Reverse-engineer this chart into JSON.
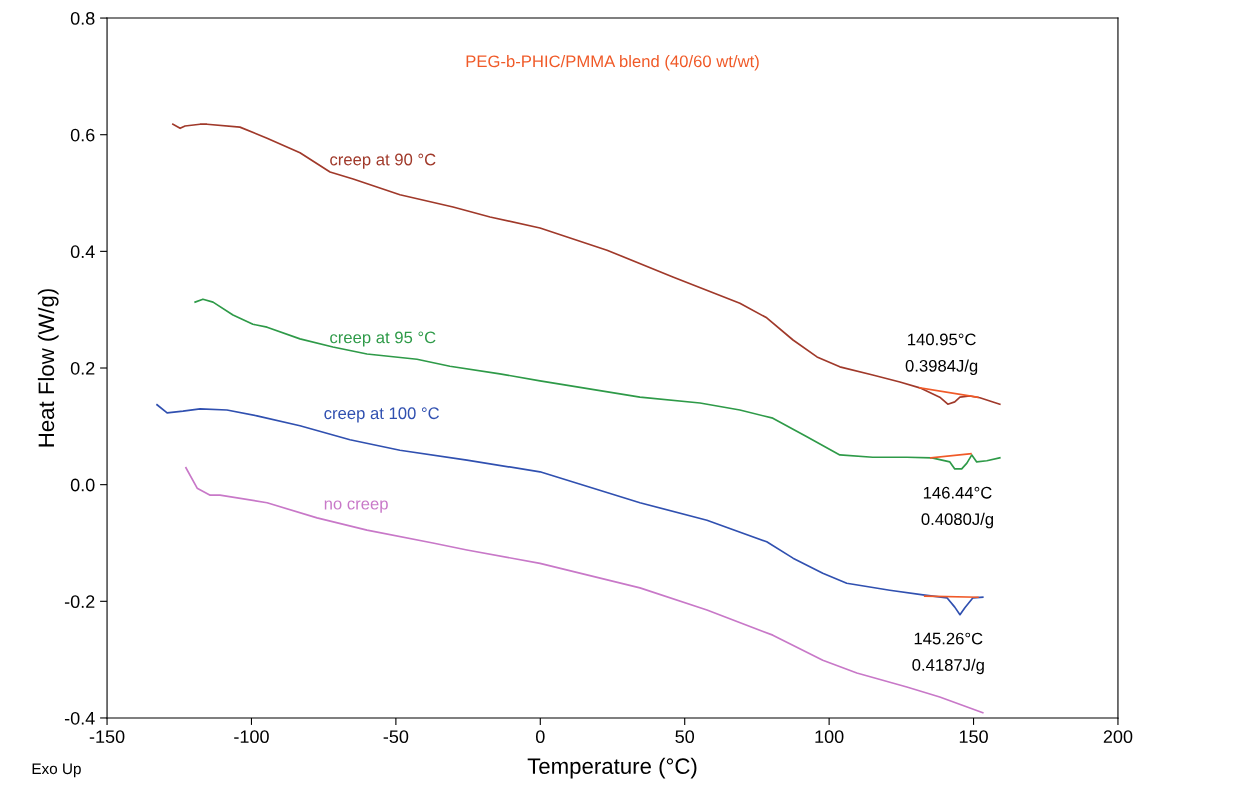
{
  "chart_data": {
    "type": "line",
    "title": "PEG-b-PHIC/PMMA blend (40/60 wt/wt)",
    "xlabel": "Temperature (°C)",
    "ylabel": "Heat Flow (W/g)",
    "xlim": [
      -150,
      200
    ],
    "xticks": [
      -150,
      -100,
      -50,
      0,
      50,
      100,
      150,
      200
    ],
    "ylim": [
      -0.4,
      0.8
    ],
    "yticks": [
      {
        "value": -0.4,
        "label": "-0.4"
      },
      {
        "value": -0.2,
        "label": "-0.2"
      },
      {
        "value": 0.0,
        "label": "0.0"
      },
      0.2,
      0.4,
      0.6,
      0.8
    ],
    "grid": false,
    "legend": false,
    "line_style": "solid",
    "marker": "none",
    "series": [
      {
        "name": "creep at 90 °C",
        "color": "#a0392a",
        "x": [
          -127.2,
          -124.7,
          -123,
          -117.8,
          -115.4,
          -104,
          -94.6,
          -83.2,
          -72.8,
          -64.8,
          -48.6,
          -30.2,
          -17.4,
          -0.1,
          23.1,
          45.9,
          69.1,
          78.4,
          87.5,
          95.8,
          103.7,
          115.1,
          124.5,
          131.4,
          138.3,
          141.1,
          143.5,
          145.3,
          148.7,
          152.2,
          159.1
        ],
        "values": [
          0.618,
          0.611,
          0.615,
          0.618,
          0.618,
          0.613,
          0.594,
          0.569,
          0.536,
          0.524,
          0.497,
          0.476,
          0.459,
          0.44,
          0.402,
          0.356,
          0.311,
          0.286,
          0.248,
          0.219,
          0.202,
          0.188,
          0.176,
          0.166,
          0.15,
          0.138,
          0.142,
          0.15,
          0.152,
          0.149,
          0.138
        ]
      },
      {
        "name": "creep at 95 °C",
        "color": "#2e9a48",
        "x": [
          -119.5,
          -116.8,
          -113.3,
          -106.4,
          -99.5,
          -94.6,
          -83.2,
          -71.8,
          -60.0,
          -42.7,
          -31.3,
          -14.0,
          -0.1,
          34.5,
          55.3,
          69.1,
          80.5,
          92.3,
          103.7,
          115.1,
          126.9,
          135.6,
          141.8,
          143.5,
          145.9,
          147.7,
          149.4,
          151.1,
          154.6,
          159.1
        ],
        "values": [
          0.313,
          0.318,
          0.313,
          0.291,
          0.275,
          0.27,
          0.25,
          0.236,
          0.224,
          0.215,
          0.203,
          0.19,
          0.178,
          0.15,
          0.14,
          0.128,
          0.114,
          0.082,
          0.051,
          0.047,
          0.047,
          0.046,
          0.039,
          0.027,
          0.027,
          0.037,
          0.051,
          0.039,
          0.041,
          0.046
        ]
      },
      {
        "name": "creep at 100 °C",
        "color": "#3050b0",
        "x": [
          -132.7,
          -129.2,
          -123.7,
          -117.8,
          -108.5,
          -98.1,
          -83.2,
          -65.9,
          -48.6,
          -25.4,
          -0.1,
          34.5,
          57.7,
          78.4,
          87.5,
          97.8,
          106.1,
          121.0,
          132.5,
          140.8,
          143.5,
          145.3,
          147.0,
          149.8,
          153.2
        ],
        "values": [
          0.137,
          0.123,
          0.126,
          0.13,
          0.128,
          0.118,
          0.101,
          0.077,
          0.059,
          0.042,
          0.022,
          -0.031,
          -0.061,
          -0.098,
          -0.126,
          -0.152,
          -0.169,
          -0.181,
          -0.189,
          -0.194,
          -0.21,
          -0.223,
          -0.211,
          -0.194,
          -0.193
        ]
      },
      {
        "name": "no creep",
        "color": "#c878c8",
        "x": [
          -122.7,
          -118.8,
          -114.3,
          -110.9,
          -94.6,
          -77.3,
          -60.0,
          -37.2,
          -25.4,
          -0.1,
          34.5,
          57.7,
          80.5,
          97.8,
          109.6,
          126.9,
          138.3,
          153.2
        ],
        "values": [
          0.029,
          -0.006,
          -0.018,
          -0.018,
          -0.031,
          -0.057,
          -0.078,
          -0.1,
          -0.112,
          -0.135,
          -0.177,
          -0.215,
          -0.258,
          -0.301,
          -0.323,
          -0.347,
          -0.364,
          -0.391
        ]
      },
      {
        "color": "#f05a28",
        "x": [
          131.4,
          151.5
        ],
        "values": [
          0.166,
          0.15
        ]
      },
      {
        "color": "#f05a28",
        "x": [
          135.2,
          149.1
        ],
        "values": [
          0.046,
          0.053
        ]
      },
      {
        "color": "#f05a28",
        "x": [
          133.1,
          151.5
        ],
        "values": [
          -0.191,
          -0.193
        ]
      }
    ],
    "annotations": [
      {
        "text": "140.95°C\n0.3984J/g",
        "x": 140.95,
        "y": 0.138
      },
      {
        "text": "146.44°C\n0.4080J/g",
        "x": 146.44,
        "y": 0.027
      },
      {
        "text": "145.26°C\n0.4187J/g",
        "x": 145.26,
        "y": -0.223
      },
      "Exo Up"
    ]
  }
}
